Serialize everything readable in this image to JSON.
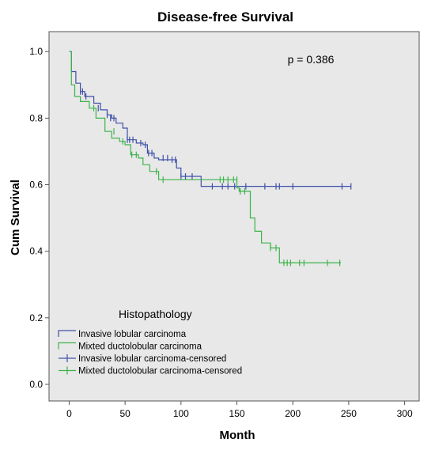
{
  "chart_data": {
    "type": "line",
    "title": "Disease-free Survival",
    "xlabel": "Month",
    "ylabel": "Cum Survival",
    "xlim": [
      -18,
      313
    ],
    "ylim": [
      -0.05,
      1.06
    ],
    "xticks": [
      0,
      50,
      100,
      150,
      200,
      250,
      300
    ],
    "yticks": [
      0.0,
      0.2,
      0.4,
      0.6,
      0.8,
      1.0
    ],
    "annotation": "p = 0.386",
    "legend_title": "Histopathology",
    "legend_position": "bottom-left",
    "grid": false,
    "plot_background": "#e8e8e8",
    "series": [
      {
        "name": "Invasive lobular carcinoma",
        "color": "#3f51a8",
        "step_x": [
          0,
          2,
          6,
          10,
          14,
          22,
          28,
          34,
          38,
          42,
          48,
          52,
          60,
          66,
          70,
          76,
          80,
          90,
          96,
          100,
          102,
          118,
          160,
          252
        ],
        "step_y": [
          1.0,
          0.94,
          0.905,
          0.88,
          0.865,
          0.845,
          0.825,
          0.81,
          0.8,
          0.785,
          0.77,
          0.735,
          0.725,
          0.72,
          0.695,
          0.68,
          0.675,
          0.675,
          0.65,
          0.625,
          0.625,
          0.595,
          0.595,
          0.595
        ],
        "censored_x": [
          10,
          12,
          15,
          26,
          34,
          37,
          40,
          52,
          54,
          57,
          64,
          68,
          71,
          74,
          84,
          88,
          92,
          95,
          100,
          104,
          110,
          128,
          137,
          142,
          148,
          158,
          175,
          185,
          188,
          200,
          244,
          252
        ],
        "censored_y": [
          0.88,
          0.88,
          0.865,
          0.83,
          0.81,
          0.8,
          0.8,
          0.735,
          0.735,
          0.735,
          0.725,
          0.72,
          0.695,
          0.695,
          0.68,
          0.68,
          0.675,
          0.675,
          0.625,
          0.625,
          0.625,
          0.595,
          0.595,
          0.595,
          0.595,
          0.595,
          0.595,
          0.595,
          0.595,
          0.595,
          0.595,
          0.595
        ]
      },
      {
        "name": "Mixted ductolobular carcinoma",
        "color": "#3cb44b",
        "step_x": [
          0,
          2,
          5,
          10,
          18,
          24,
          32,
          38,
          45,
          50,
          55,
          62,
          66,
          72,
          80,
          110,
          150,
          152,
          162,
          166,
          172,
          180,
          184,
          188,
          243
        ],
        "step_y": [
          1.0,
          0.9,
          0.865,
          0.85,
          0.83,
          0.8,
          0.76,
          0.74,
          0.73,
          0.72,
          0.69,
          0.68,
          0.66,
          0.64,
          0.615,
          0.615,
          0.59,
          0.58,
          0.5,
          0.46,
          0.425,
          0.41,
          0.41,
          0.365,
          0.365
        ],
        "censored_x": [
          22,
          40,
          48,
          56,
          60,
          78,
          84,
          135,
          138,
          142,
          147,
          150,
          153,
          157,
          180,
          185,
          192,
          195,
          198,
          206,
          210,
          231,
          242
        ],
        "censored_y": [
          0.83,
          0.76,
          0.73,
          0.69,
          0.69,
          0.64,
          0.615,
          0.615,
          0.615,
          0.615,
          0.615,
          0.615,
          0.58,
          0.58,
          0.41,
          0.41,
          0.365,
          0.365,
          0.365,
          0.365,
          0.365,
          0.365,
          0.365
        ]
      }
    ],
    "legend_entries": [
      {
        "label": "Invasive lobular carcinoma",
        "kind": "line",
        "color": "#3f51a8"
      },
      {
        "label": "Mixted ductolobular carcinoma",
        "kind": "line",
        "color": "#3cb44b"
      },
      {
        "label": "Invasive lobular carcinoma-censored",
        "kind": "censor",
        "color": "#3f51a8"
      },
      {
        "label": "Mixted ductolobular carcinoma-censored",
        "kind": "censor",
        "color": "#3cb44b"
      }
    ]
  }
}
